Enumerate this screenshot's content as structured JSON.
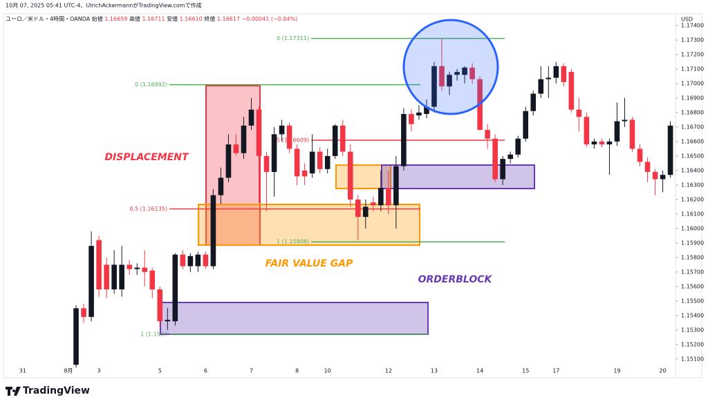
{
  "chart_data": {
    "type": "candlestick",
    "title": "10月 07, 2025 05:41 UTC-4、UlrichAckermannがTradingView.comで作成",
    "symbol": "ユーロ／米ドル・4時間・OANDA",
    "ohlc_legend": [
      {
        "label": "始値",
        "value": "1.16659"
      },
      {
        "label": "高値",
        "value": "1.16711"
      },
      {
        "label": "安値",
        "value": "1.16610"
      },
      {
        "label": "終値",
        "value": "1.16617"
      }
    ],
    "change": "−0.00041 (−0.04%)",
    "currency": "USD",
    "brand": "TradingView",
    "up_color": "#131722",
    "down_color": "#f23645",
    "categories": [
      "31",
      null,
      null,
      null,
      null,
      null,
      "8月",
      null,
      null,
      null,
      "3",
      null,
      null,
      null,
      null,
      null,
      null,
      null,
      "5",
      null,
      null,
      null,
      null,
      null,
      "6",
      null,
      null,
      null,
      null,
      null,
      "7",
      null,
      null,
      null,
      null,
      null,
      "8",
      null,
      null,
      null,
      "10",
      null,
      null,
      null,
      null,
      null,
      null,
      null,
      "12",
      null,
      null,
      null,
      null,
      null,
      "13",
      null,
      null,
      null,
      null,
      null,
      "14",
      null,
      null,
      null,
      null,
      null,
      "15",
      null,
      null,
      null,
      "17",
      null,
      null,
      null,
      null,
      null,
      null,
      null,
      "19",
      null,
      null,
      null,
      null,
      null,
      "20",
      null
    ],
    "open": [
      null,
      null,
      null,
      null,
      null,
      null,
      null,
      1.1506,
      1.1545,
      1.1539,
      1.1592,
      1.1575,
      1.1558,
      1.1558,
      1.1575,
      1.1572,
      1.1573,
      1.1571,
      1.1558,
      1.1536,
      1.1536,
      1.1582,
      1.1574,
      1.1574,
      1.1582,
      1.1574,
      1.1623,
      1.1635,
      1.1658,
      1.1652,
      1.1671,
      1.1682,
      1.165,
      1.1639,
      1.1665,
      1.1671,
      1.1655,
      1.164,
      1.1638,
      1.1653,
      1.1641,
      1.165,
      1.1671,
      1.1653,
      1.162,
      1.1608,
      1.1618,
      1.1616,
      1.1628,
      1.1616,
      1.1643,
      1.1679,
      1.1678,
      1.1679,
      1.1684,
      1.1712,
      1.1698,
      1.1706,
      1.1706,
      1.1711,
      1.1703,
      1.1668,
      1.1662,
      1.1634,
      1.1648,
      1.1651,
      1.1662,
      1.1681,
      1.1693,
      1.1703,
      1.1704,
      1.1712,
      1.1708,
      1.1682,
      1.1677,
      1.1658,
      1.166,
      1.1658,
      1.166,
      1.1674,
      1.1675,
      1.1655,
      1.1646,
      1.1639,
      1.1634,
      1.1637
    ],
    "high": [
      null,
      null,
      null,
      null,
      null,
      null,
      null,
      1.1547,
      1.1548,
      1.1598,
      1.1595,
      1.158,
      1.1585,
      1.1588,
      1.1578,
      1.1576,
      1.1585,
      1.1573,
      1.156,
      1.1545,
      1.1583,
      1.1585,
      1.1583,
      1.1584,
      1.1584,
      1.1627,
      1.1642,
      1.1665,
      1.1665,
      1.1677,
      1.169,
      1.1684,
      1.1653,
      1.167,
      1.1675,
      1.1673,
      1.1658,
      1.1645,
      1.1665,
      1.1656,
      1.1655,
      1.1672,
      1.1675,
      1.1658,
      1.1623,
      1.162,
      1.1622,
      1.164,
      1.164,
      1.165,
      1.1683,
      1.1682,
      1.1685,
      1.1689,
      1.1715,
      1.1731,
      1.1708,
      1.171,
      1.1712,
      1.1714,
      1.1705,
      1.1672,
      1.1665,
      1.165,
      1.1653,
      1.1664,
      1.1684,
      1.1695,
      1.1712,
      1.1712,
      1.1715,
      1.1714,
      1.171,
      1.169,
      1.168,
      1.1662,
      1.1662,
      1.1662,
      1.1687,
      1.169,
      1.1677,
      1.1658,
      1.1649,
      1.1641,
      1.164,
      1.1674
    ],
    "low": [
      null,
      null,
      null,
      null,
      null,
      null,
      null,
      1.1504,
      1.1535,
      1.1536,
      1.1553,
      1.1552,
      1.1555,
      1.1553,
      1.1568,
      1.1568,
      1.156,
      1.1552,
      1.1532,
      1.153,
      1.1533,
      1.1572,
      1.157,
      1.157,
      1.1572,
      1.1572,
      1.1617,
      1.1632,
      1.165,
      1.1648,
      1.1668,
      1.1618,
      1.1612,
      1.1622,
      1.166,
      1.1652,
      1.163,
      1.163,
      1.1635,
      1.1638,
      1.1638,
      1.1648,
      1.165,
      1.1615,
      1.1592,
      1.16,
      1.1612,
      1.1612,
      1.161,
      1.16,
      1.164,
      1.1667,
      1.1675,
      1.1676,
      1.168,
      1.1695,
      1.1692,
      1.1702,
      1.17,
      1.17,
      1.1668,
      1.1655,
      1.1632,
      1.163,
      1.1645,
      1.1649,
      1.166,
      1.1678,
      1.169,
      1.169,
      1.17,
      1.1698,
      1.168,
      1.1667,
      1.1656,
      1.1655,
      1.1656,
      1.1637,
      1.1657,
      1.167,
      1.1653,
      1.1643,
      1.1632,
      1.1623,
      1.1625,
      1.1635
    ],
    "close": [
      null,
      null,
      null,
      null,
      null,
      null,
      null,
      1.1545,
      1.1539,
      1.1588,
      1.1558,
      1.1558,
      1.1575,
      1.1575,
      1.1572,
      1.1573,
      1.157,
      1.1558,
      1.1536,
      1.1537,
      1.1582,
      1.1574,
      1.1581,
      1.1582,
      1.1574,
      1.1623,
      1.1635,
      1.1658,
      1.1652,
      1.1671,
      1.1682,
      1.165,
      1.1639,
      1.1665,
      1.1671,
      1.1655,
      1.1636,
      1.1636,
      1.1653,
      1.1641,
      1.165,
      1.1671,
      1.1653,
      1.162,
      1.1608,
      1.1615,
      1.1616,
      1.1628,
      1.1616,
      1.1643,
      1.1679,
      1.1672,
      1.168,
      1.1684,
      1.1712,
      1.1698,
      1.1706,
      1.1708,
      1.1711,
      1.1703,
      1.1668,
      1.1662,
      1.1634,
      1.1648,
      1.1651,
      1.1662,
      1.1681,
      1.1693,
      1.1703,
      1.1704,
      1.1712,
      1.1701,
      1.1682,
      1.1677,
      1.1658,
      1.166,
      1.1658,
      1.166,
      1.1674,
      1.1675,
      1.1655,
      1.1646,
      1.1639,
      1.1634,
      1.1637,
      1.1671
    ],
    "ylim": [
      1.1498,
      1.174
    ],
    "yticks": [
      {
        "value": 1.151,
        "label": "1.15100"
      },
      {
        "value": 1.152,
        "label": "1.15200"
      },
      {
        "value": 1.153,
        "label": "1.15300"
      },
      {
        "value": 1.154,
        "label": "1.15400"
      },
      {
        "value": 1.155,
        "label": "1.15500"
      },
      {
        "value": 1.156,
        "label": "1.15600"
      },
      {
        "value": 1.157,
        "label": "1.15700"
      },
      {
        "value": 1.158,
        "label": "1.15800"
      },
      {
        "value": 1.159,
        "label": "1.15900"
      },
      {
        "value": 1.16,
        "label": "1.16000"
      },
      {
        "value": 1.161,
        "label": "1.16100"
      },
      {
        "value": 1.162,
        "label": "1.16200"
      },
      {
        "value": 1.163,
        "label": "1.16300"
      },
      {
        "value": 1.164,
        "label": "1.16400"
      },
      {
        "value": 1.165,
        "label": "1.16500"
      },
      {
        "value": 1.166,
        "label": "1.16600"
      },
      {
        "value": 1.167,
        "label": "1.16700"
      },
      {
        "value": 1.168,
        "label": "1.16800"
      },
      {
        "value": 1.169,
        "label": "1.16900"
      },
      {
        "value": 1.17,
        "label": "1.17000"
      },
      {
        "value": 1.171,
        "label": "1.17100"
      },
      {
        "value": 1.172,
        "label": "1.17200"
      },
      {
        "value": 1.173,
        "label": "1.17300"
      },
      {
        "value": 1.174,
        "label": "1.17400"
      }
    ],
    "grid": false,
    "levels": [
      {
        "value": 1.17311,
        "label": "0 (1.17311)",
        "color": "#4caf50"
      },
      {
        "value": 1.16992,
        "label": "0 (1.16992)",
        "color": "#4caf50"
      },
      {
        "value": 1.16609,
        "label": "0.5 (1.16609)",
        "color": "#f23645"
      },
      {
        "value": 1.16135,
        "label": "0.5 (1.16135)",
        "color": "#f23645"
      },
      {
        "value": 1.15908,
        "label": "1 (1.15908)",
        "color": "#4caf50"
      },
      {
        "value": 1.1527,
        "label": "1 (1.1527",
        "color": "#4caf50"
      }
    ],
    "annotations": [
      {
        "text": "DISPLACEMENT",
        "color": "#f23645"
      },
      {
        "text": "FAIR VALUE GAP",
        "color": "#ff9800"
      },
      {
        "text": "ORDERBLOCK",
        "color": "#673ab7"
      }
    ]
  }
}
